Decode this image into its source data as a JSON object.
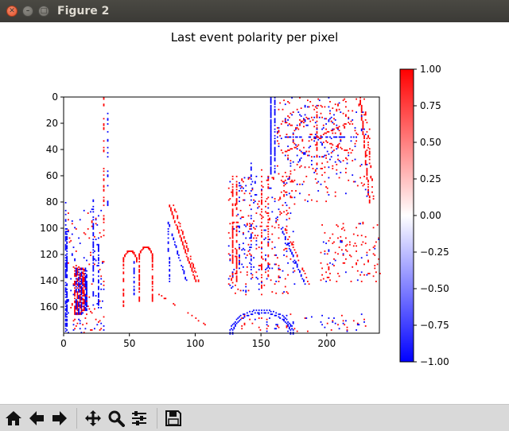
{
  "window": {
    "title": "Figure 2"
  },
  "toolbar": {
    "buttons": [
      {
        "name": "home",
        "icon": "home-icon"
      },
      {
        "name": "back",
        "icon": "arrow-left-icon"
      },
      {
        "name": "forward",
        "icon": "arrow-right-icon"
      },
      {
        "name": "pan",
        "icon": "move-icon"
      },
      {
        "name": "zoom",
        "icon": "zoom-icon"
      },
      {
        "name": "configure-subplots",
        "icon": "sliders-icon"
      },
      {
        "name": "save",
        "icon": "save-icon"
      }
    ]
  },
  "chart_data": {
    "type": "heatmap",
    "title": "Last event polarity per pixel",
    "xlabel": "",
    "ylabel": "",
    "xlim": [
      0,
      240
    ],
    "ylim": [
      180,
      0
    ],
    "x_ticks": [
      "0",
      "50",
      "100",
      "150",
      "200"
    ],
    "y_ticks": [
      "0",
      "20",
      "40",
      "60",
      "80",
      "100",
      "120",
      "140",
      "160"
    ],
    "colormap": "bwr",
    "value_range": [
      -1.0,
      1.0
    ],
    "colorbar_ticks": [
      "1.00",
      "0.75",
      "0.50",
      "0.25",
      "0.00",
      "−0.25",
      "−0.50",
      "−0.75",
      "−1.00"
    ],
    "colors": {
      "negative": "#0000ff",
      "neutral": "#ffffff",
      "positive": "#ff0000"
    },
    "note_values": "sparse pixels with value +1 (red) or -1 (blue), 0 elsewhere"
  }
}
